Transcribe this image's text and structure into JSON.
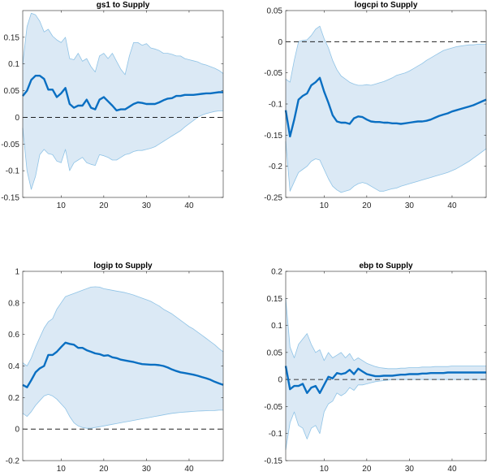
{
  "figure": {
    "colors": {
      "band_fill": "#dbe9f5",
      "band_edge": "#8fc3e6",
      "line": "#0a6fc2",
      "zero_line": "#000000"
    }
  },
  "chart_data": [
    {
      "type": "area",
      "title": "gs1 to Supply",
      "xlim": [
        1,
        48
      ],
      "ylim": [
        -0.15,
        0.2
      ],
      "xticks": [
        10,
        20,
        30,
        40
      ],
      "yticks": [
        -0.15,
        -0.1,
        -0.05,
        0,
        0.05,
        0.1,
        0.15
      ],
      "ytick_labels": [
        "-0.15",
        "-0.1",
        "-0.05",
        "0",
        "0.05",
        "0.1",
        "0.15"
      ],
      "zero_line": true,
      "grid": false,
      "x": [
        1,
        2,
        3,
        4,
        5,
        6,
        7,
        8,
        9,
        10,
        11,
        12,
        13,
        14,
        15,
        16,
        17,
        18,
        19,
        20,
        21,
        22,
        23,
        24,
        25,
        26,
        27,
        28,
        29,
        30,
        31,
        32,
        33,
        34,
        35,
        36,
        37,
        38,
        39,
        40,
        41,
        42,
        43,
        44,
        45,
        46,
        47,
        48
      ],
      "series": [
        {
          "role": "median",
          "values": [
            0.04,
            0.05,
            0.07,
            0.078,
            0.078,
            0.072,
            0.052,
            0.052,
            0.038,
            0.045,
            0.055,
            0.025,
            0.018,
            0.022,
            0.022,
            0.033,
            0.018,
            0.015,
            0.033,
            0.038,
            0.03,
            0.022,
            0.013,
            0.015,
            0.015,
            0.02,
            0.025,
            0.028,
            0.027,
            0.025,
            0.025,
            0.025,
            0.028,
            0.032,
            0.035,
            0.036,
            0.04,
            0.04,
            0.042,
            0.042,
            0.042,
            0.043,
            0.044,
            0.045,
            0.045,
            0.046,
            0.047,
            0.047
          ]
        },
        {
          "role": "upper",
          "values": [
            0.1,
            0.17,
            0.195,
            0.192,
            0.18,
            0.16,
            0.165,
            0.152,
            0.145,
            0.14,
            0.15,
            0.11,
            0.108,
            0.12,
            0.105,
            0.11,
            0.095,
            0.085,
            0.115,
            0.12,
            0.11,
            0.12,
            0.105,
            0.09,
            0.08,
            0.115,
            0.14,
            0.14,
            0.135,
            0.138,
            0.13,
            0.128,
            0.125,
            0.12,
            0.12,
            0.118,
            0.115,
            0.115,
            0.11,
            0.108,
            0.106,
            0.104,
            0.1,
            0.098,
            0.095,
            0.092,
            0.088,
            0.082
          ]
        },
        {
          "role": "lower",
          "values": [
            -0.02,
            -0.1,
            -0.135,
            -0.11,
            -0.07,
            -0.06,
            -0.068,
            -0.07,
            -0.082,
            -0.085,
            -0.06,
            -0.1,
            -0.085,
            -0.08,
            -0.075,
            -0.085,
            -0.088,
            -0.09,
            -0.07,
            -0.072,
            -0.075,
            -0.08,
            -0.08,
            -0.075,
            -0.07,
            -0.068,
            -0.064,
            -0.062,
            -0.062,
            -0.06,
            -0.058,
            -0.055,
            -0.05,
            -0.045,
            -0.04,
            -0.035,
            -0.03,
            -0.025,
            -0.018,
            -0.012,
            -0.006,
            0.0,
            0.004,
            0.007,
            0.009,
            0.011,
            0.012,
            0.012
          ]
        }
      ]
    },
    {
      "type": "area",
      "title": "logcpi to Supply",
      "xlim": [
        1,
        48
      ],
      "ylim": [
        -0.25,
        0.05
      ],
      "xticks": [
        10,
        20,
        30,
        40
      ],
      "yticks": [
        -0.25,
        -0.2,
        -0.15,
        -0.1,
        -0.05,
        0,
        0.05
      ],
      "ytick_labels": [
        "-0.25",
        "-0.2",
        "-0.15",
        "-0.1",
        "-0.05",
        "0",
        "0.05"
      ],
      "zero_line": true,
      "grid": false,
      "x": [
        1,
        2,
        3,
        4,
        5,
        6,
        7,
        8,
        9,
        10,
        11,
        12,
        13,
        14,
        15,
        16,
        17,
        18,
        19,
        20,
        21,
        22,
        23,
        24,
        25,
        26,
        27,
        28,
        29,
        30,
        31,
        32,
        33,
        34,
        35,
        36,
        37,
        38,
        39,
        40,
        41,
        42,
        43,
        44,
        45,
        46,
        47,
        48
      ],
      "series": [
        {
          "role": "median",
          "values": [
            -0.11,
            -0.152,
            -0.125,
            -0.093,
            -0.087,
            -0.083,
            -0.07,
            -0.065,
            -0.058,
            -0.08,
            -0.098,
            -0.118,
            -0.128,
            -0.13,
            -0.13,
            -0.132,
            -0.123,
            -0.12,
            -0.121,
            -0.125,
            -0.128,
            -0.129,
            -0.129,
            -0.13,
            -0.13,
            -0.131,
            -0.131,
            -0.132,
            -0.131,
            -0.13,
            -0.129,
            -0.128,
            -0.128,
            -0.127,
            -0.125,
            -0.122,
            -0.119,
            -0.117,
            -0.115,
            -0.112,
            -0.11,
            -0.108,
            -0.106,
            -0.104,
            -0.102,
            -0.099,
            -0.096,
            -0.093
          ]
        },
        {
          "role": "upper",
          "values": [
            -0.06,
            -0.065,
            -0.03,
            0.0,
            0.002,
            0.003,
            0.01,
            0.02,
            0.025,
            0.005,
            -0.01,
            -0.03,
            -0.045,
            -0.055,
            -0.06,
            -0.065,
            -0.068,
            -0.07,
            -0.07,
            -0.069,
            -0.07,
            -0.068,
            -0.066,
            -0.064,
            -0.061,
            -0.058,
            -0.054,
            -0.052,
            -0.05,
            -0.047,
            -0.043,
            -0.039,
            -0.035,
            -0.03,
            -0.026,
            -0.022,
            -0.018,
            -0.014,
            -0.012,
            -0.01,
            -0.008,
            -0.007,
            -0.006,
            -0.005,
            -0.005,
            -0.004,
            -0.004,
            -0.004
          ]
        },
        {
          "role": "lower",
          "values": [
            -0.16,
            -0.24,
            -0.225,
            -0.21,
            -0.205,
            -0.2,
            -0.192,
            -0.188,
            -0.19,
            -0.205,
            -0.22,
            -0.232,
            -0.238,
            -0.242,
            -0.24,
            -0.238,
            -0.232,
            -0.228,
            -0.226,
            -0.228,
            -0.232,
            -0.236,
            -0.24,
            -0.24,
            -0.238,
            -0.236,
            -0.235,
            -0.232,
            -0.23,
            -0.228,
            -0.226,
            -0.224,
            -0.222,
            -0.22,
            -0.218,
            -0.216,
            -0.214,
            -0.212,
            -0.21,
            -0.207,
            -0.204,
            -0.2,
            -0.196,
            -0.192,
            -0.187,
            -0.182,
            -0.177,
            -0.172
          ]
        }
      ]
    },
    {
      "type": "area",
      "title": "logip to Supply",
      "xlim": [
        1,
        48
      ],
      "ylim": [
        -0.2,
        1.0
      ],
      "xticks": [
        10,
        20,
        30,
        40
      ],
      "yticks": [
        -0.2,
        0,
        0.2,
        0.4,
        0.6,
        0.8,
        1
      ],
      "ytick_labels": [
        "-0.2",
        "0",
        "0.2",
        "0.4",
        "0.6",
        "0.8",
        "1"
      ],
      "zero_line": true,
      "grid": false,
      "x": [
        1,
        2,
        3,
        4,
        5,
        6,
        7,
        8,
        9,
        10,
        11,
        12,
        13,
        14,
        15,
        16,
        17,
        18,
        19,
        20,
        21,
        22,
        23,
        24,
        25,
        26,
        27,
        28,
        29,
        30,
        31,
        32,
        33,
        34,
        35,
        36,
        37,
        38,
        39,
        40,
        41,
        42,
        43,
        44,
        45,
        46,
        47,
        48
      ],
      "series": [
        {
          "role": "median",
          "values": [
            0.28,
            0.265,
            0.31,
            0.36,
            0.385,
            0.4,
            0.47,
            0.47,
            0.49,
            0.52,
            0.548,
            0.54,
            0.535,
            0.515,
            0.515,
            0.5,
            0.49,
            0.48,
            0.475,
            0.465,
            0.468,
            0.455,
            0.45,
            0.44,
            0.435,
            0.43,
            0.425,
            0.418,
            0.412,
            0.41,
            0.408,
            0.408,
            0.405,
            0.4,
            0.39,
            0.378,
            0.368,
            0.36,
            0.355,
            0.35,
            0.345,
            0.338,
            0.33,
            0.322,
            0.313,
            0.3,
            0.29,
            0.28
          ]
        },
        {
          "role": "upper",
          "values": [
            0.42,
            0.4,
            0.45,
            0.52,
            0.58,
            0.64,
            0.68,
            0.7,
            0.76,
            0.8,
            0.84,
            0.85,
            0.86,
            0.87,
            0.88,
            0.89,
            0.9,
            0.902,
            0.9,
            0.89,
            0.885,
            0.88,
            0.875,
            0.87,
            0.865,
            0.858,
            0.85,
            0.84,
            0.83,
            0.82,
            0.81,
            0.795,
            0.78,
            0.76,
            0.745,
            0.73,
            0.71,
            0.69,
            0.67,
            0.65,
            0.635,
            0.615,
            0.595,
            0.575,
            0.555,
            0.535,
            0.51,
            0.49
          ]
        },
        {
          "role": "lower",
          "values": [
            0.1,
            0.08,
            0.11,
            0.15,
            0.18,
            0.21,
            0.22,
            0.21,
            0.19,
            0.16,
            0.13,
            0.08,
            0.04,
            0.02,
            0.01,
            0.005,
            0.005,
            0.01,
            0.015,
            0.02,
            0.025,
            0.03,
            0.035,
            0.04,
            0.045,
            0.05,
            0.055,
            0.06,
            0.065,
            0.07,
            0.075,
            0.08,
            0.085,
            0.09,
            0.095,
            0.1,
            0.103,
            0.106,
            0.108,
            0.11,
            0.112,
            0.114,
            0.115,
            0.116,
            0.117,
            0.118,
            0.12,
            0.12
          ]
        }
      ]
    },
    {
      "type": "area",
      "title": "ebp to Supply",
      "xlim": [
        1,
        48
      ],
      "ylim": [
        -0.15,
        0.2
      ],
      "xticks": [
        10,
        20,
        30,
        40
      ],
      "yticks": [
        -0.15,
        -0.1,
        -0.05,
        0,
        0.05,
        0.1,
        0.15,
        0.2
      ],
      "ytick_labels": [
        "-0.15",
        "-0.1",
        "-0.05",
        "0",
        "0.05",
        "0.1",
        "0.15",
        "0.2"
      ],
      "zero_line": true,
      "grid": false,
      "x": [
        1,
        2,
        3,
        4,
        5,
        6,
        7,
        8,
        9,
        10,
        11,
        12,
        13,
        14,
        15,
        16,
        17,
        18,
        19,
        20,
        21,
        22,
        23,
        24,
        25,
        26,
        27,
        28,
        29,
        30,
        31,
        32,
        33,
        34,
        35,
        36,
        37,
        38,
        39,
        40,
        41,
        42,
        43,
        44,
        45,
        46,
        47,
        48
      ],
      "series": [
        {
          "role": "median",
          "values": [
            0.025,
            -0.018,
            -0.012,
            -0.012,
            -0.008,
            -0.025,
            -0.015,
            -0.012,
            -0.025,
            -0.01,
            0.005,
            0.002,
            0.012,
            0.01,
            0.012,
            0.018,
            0.01,
            0.02,
            0.015,
            0.01,
            0.008,
            0.006,
            0.006,
            0.007,
            0.007,
            0.007,
            0.008,
            0.009,
            0.009,
            0.01,
            0.01,
            0.01,
            0.011,
            0.011,
            0.012,
            0.012,
            0.012,
            0.012,
            0.013,
            0.013,
            0.013,
            0.013,
            0.013,
            0.013,
            0.013,
            0.013,
            0.013,
            0.013
          ]
        },
        {
          "role": "upper",
          "values": [
            0.15,
            0.06,
            0.04,
            0.065,
            0.075,
            0.085,
            0.065,
            0.05,
            0.055,
            0.035,
            0.05,
            0.04,
            0.045,
            0.05,
            0.04,
            0.048,
            0.035,
            0.04,
            0.035,
            0.03,
            0.027,
            0.024,
            0.022,
            0.021,
            0.02,
            0.02,
            0.02,
            0.021,
            0.021,
            0.022,
            0.022,
            0.022,
            0.023,
            0.023,
            0.023,
            0.024,
            0.024,
            0.024,
            0.024,
            0.025,
            0.025,
            0.025,
            0.025,
            0.025,
            0.025,
            0.025,
            0.025,
            0.025
          ]
        },
        {
          "role": "lower",
          "values": [
            -0.13,
            -0.08,
            -0.06,
            -0.085,
            -0.09,
            -0.11,
            -0.09,
            -0.085,
            -0.1,
            -0.06,
            -0.045,
            -0.04,
            -0.025,
            -0.03,
            -0.025,
            -0.015,
            -0.02,
            -0.01,
            -0.01,
            -0.008,
            -0.006,
            -0.004,
            -0.003,
            -0.002,
            -0.001,
            0.0,
            0.0,
            0.0,
            0.0,
            0.0,
            0.0,
            0.0,
            0.0,
            0.0,
            0.0,
            0.0,
            0.0,
            0.0,
            0.0,
            0.0,
            0.0,
            0.0,
            0.0,
            0.0,
            0.0,
            0.0,
            0.0,
            0.0
          ]
        }
      ]
    }
  ]
}
